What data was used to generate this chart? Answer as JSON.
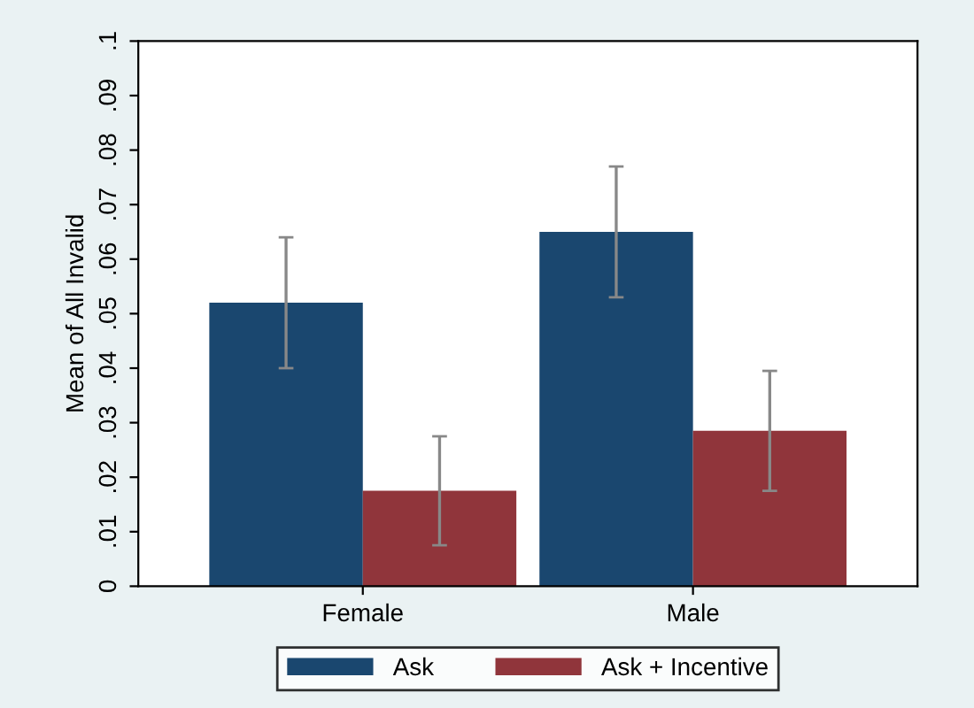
{
  "chart_data": {
    "type": "bar",
    "ylabel": "Mean of All Invalid",
    "categories": [
      "Female",
      "Male"
    ],
    "series": [
      {
        "name": "Ask",
        "color": "#1a476f",
        "values": [
          0.052,
          0.065
        ],
        "errors": [
          0.012,
          0.012
        ]
      },
      {
        "name": "Ask + Incentive",
        "color": "#90353b",
        "values": [
          0.0175,
          0.0285
        ],
        "errors": [
          0.01,
          0.011
        ]
      }
    ],
    "ylim": [
      0,
      0.1
    ],
    "yticks": [
      {
        "value": 0,
        "label": "0"
      },
      {
        "value": 0.01,
        "label": ".01"
      },
      {
        "value": 0.02,
        "label": ".02"
      },
      {
        "value": 0.03,
        "label": ".03"
      },
      {
        "value": 0.04,
        "label": ".04"
      },
      {
        "value": 0.05,
        "label": ".05"
      },
      {
        "value": 0.06,
        "label": ".06"
      },
      {
        "value": 0.07,
        "label": ".07"
      },
      {
        "value": 0.08,
        "label": ".08"
      },
      {
        "value": 0.09,
        "label": ".09"
      },
      {
        "value": 0.1,
        "label": ".1"
      }
    ],
    "grid": false,
    "legend": "bottom"
  }
}
